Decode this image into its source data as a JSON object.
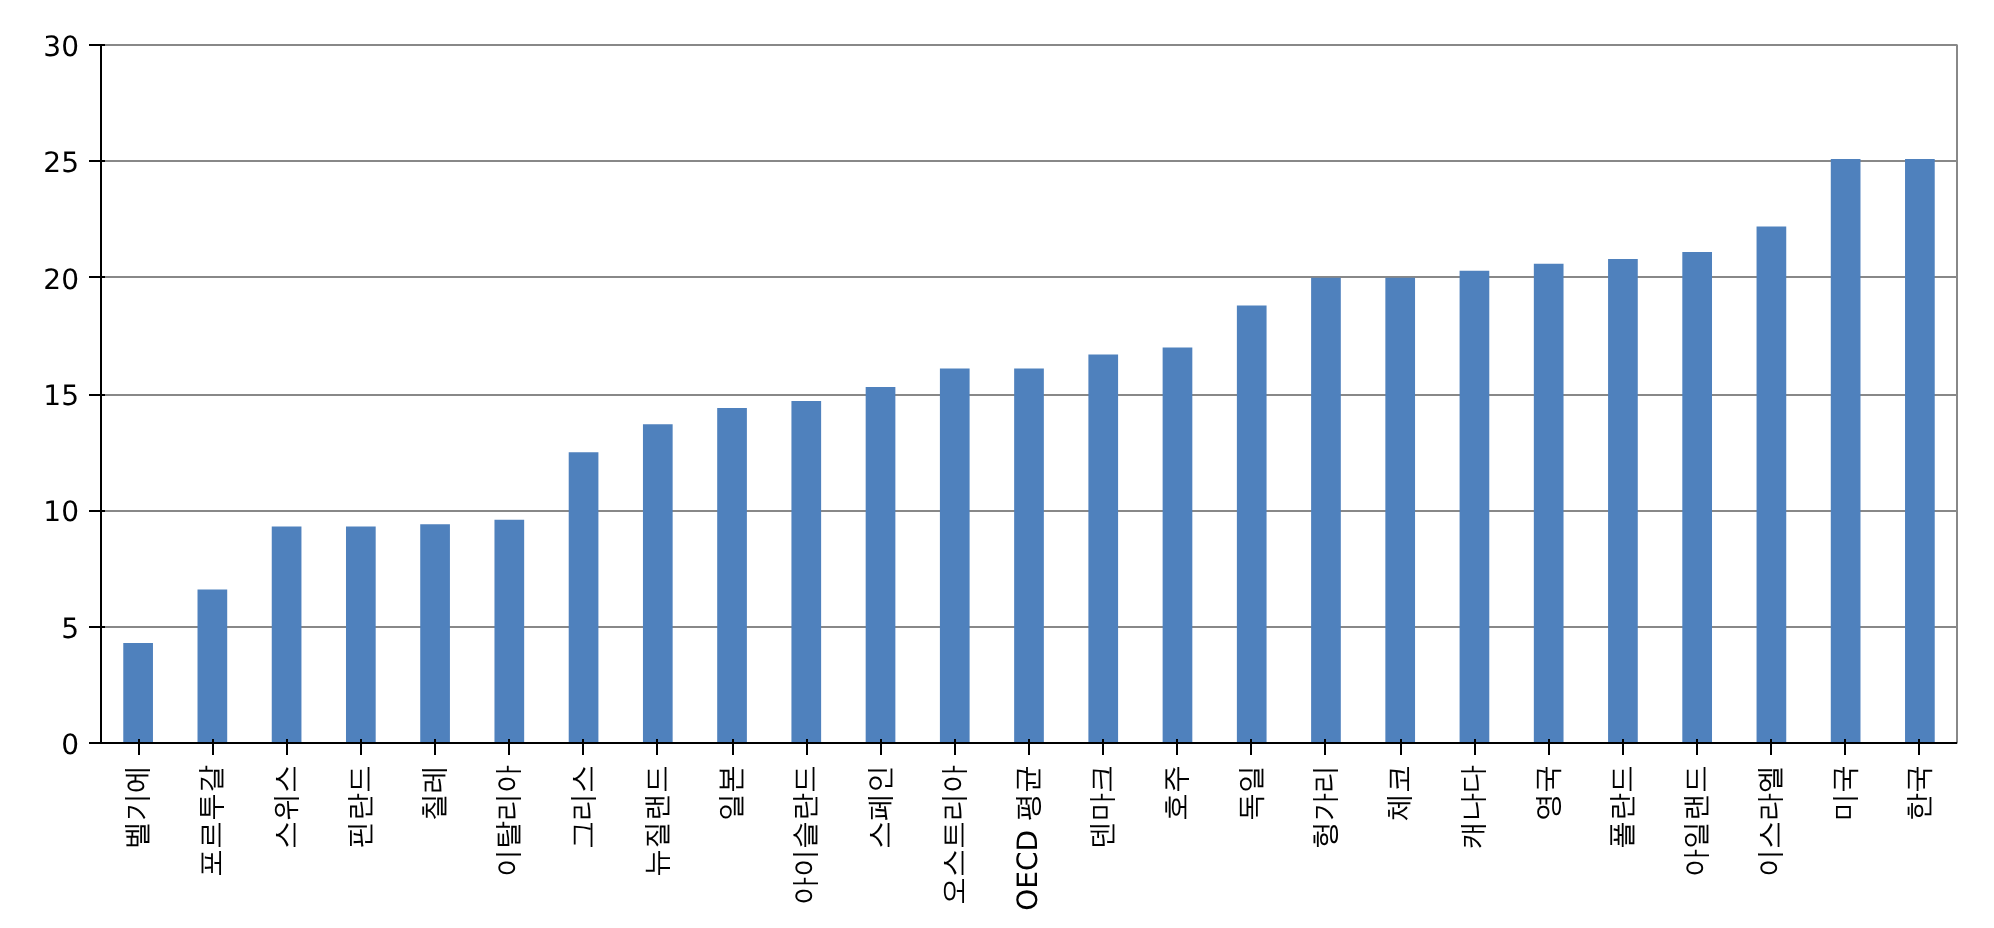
{
  "chart_data": {
    "type": "bar",
    "categories": [
      "벨기에",
      "포르투갈",
      "스위스",
      "핀란드",
      "칠레",
      "이탈리아",
      "그리스",
      "뉴질랜드",
      "일본",
      "아이슬란드",
      "스페인",
      "오스트리아",
      "OECD 평균",
      "덴마크",
      "호주",
      "독일",
      "헝가리",
      "체코",
      "캐나다",
      "영국",
      "폴란드",
      "아일랜드",
      "이스라엘",
      "미국",
      "한국"
    ],
    "values": [
      4.3,
      6.6,
      9.3,
      9.3,
      9.4,
      9.6,
      12.5,
      13.7,
      14.4,
      14.7,
      15.3,
      16.1,
      16.1,
      16.7,
      17.0,
      18.8,
      20.0,
      20.0,
      20.3,
      20.6,
      20.8,
      21.1,
      22.2,
      25.1,
      25.1
    ],
    "color": "#4f81bd",
    "ylim": [
      0,
      30
    ],
    "yticks": [
      0,
      5,
      10,
      15,
      20,
      25,
      30
    ],
    "grid": "y"
  }
}
